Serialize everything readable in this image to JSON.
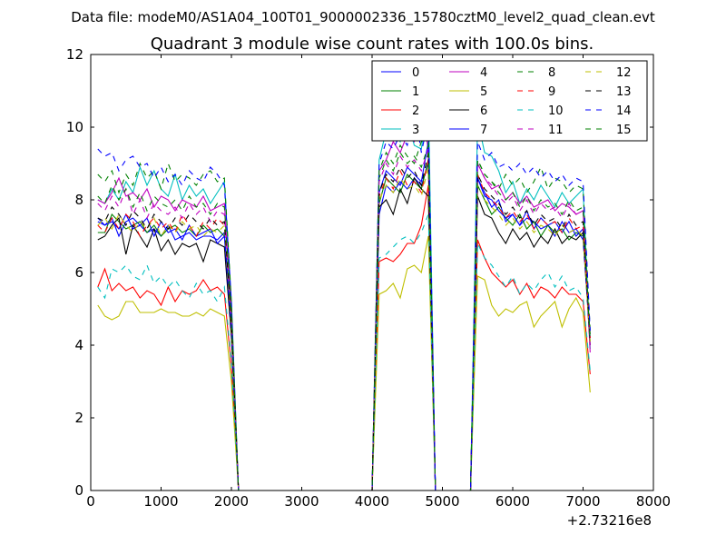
{
  "chart_data": {
    "type": "line",
    "suptitle": "Data file: modeM0/AS1A04_100T01_9000002336_15780cztM0_level2_quad_clean.evt",
    "title": "Quadrant 3 module wise count rates with 100.0s bins.",
    "xlabel": "",
    "ylabel": "",
    "x_offset_label": "+2.73216e8",
    "xlim": [
      0,
      8000
    ],
    "ylim": [
      0,
      12
    ],
    "xticks": [
      "0",
      "1000",
      "2000",
      "3000",
      "4000",
      "5000",
      "6000",
      "7000",
      "8000"
    ],
    "yticks": [
      "0",
      "2",
      "4",
      "6",
      "8",
      "10",
      "12"
    ],
    "legend_position": "top-right",
    "x": [
      100,
      200,
      300,
      400,
      500,
      600,
      700,
      800,
      900,
      1000,
      1100,
      1200,
      1300,
      1400,
      1500,
      1600,
      1700,
      1800,
      1900,
      2000,
      2100,
      2200,
      2300,
      2400,
      2500,
      2600,
      2700,
      2800,
      2900,
      3000,
      3100,
      3200,
      3300,
      3400,
      3500,
      3600,
      3700,
      3800,
      3900,
      4000,
      4100,
      4200,
      4300,
      4400,
      4500,
      4600,
      4700,
      4800,
      4900,
      5000,
      5100,
      5200,
      5300,
      5400,
      5500,
      5600,
      5700,
      5800,
      5900,
      6000,
      6100,
      6200,
      6300,
      6400,
      6500,
      6600,
      6700,
      6800,
      6900,
      7000,
      7100
    ],
    "series": [
      {
        "name": "0",
        "color": "#0000ff",
        "dash": "solid",
        "values": [
          7.4,
          7.3,
          7.5,
          7.0,
          7.4,
          7.5,
          7.3,
          7.1,
          7.2,
          7.0,
          7.3,
          6.9,
          7.0,
          7.1,
          6.9,
          7.0,
          7.0,
          6.9,
          7.1,
          4.5,
          0,
          0,
          0,
          0,
          0,
          0,
          0,
          0,
          0,
          0,
          0,
          0,
          0,
          0,
          0,
          0,
          0,
          0,
          0,
          0,
          7.6,
          8.4,
          8.2,
          8.5,
          8.3,
          8.6,
          8.4,
          9.0,
          0,
          0,
          0,
          0,
          0,
          0,
          8.6,
          8.2,
          7.8,
          8.0,
          7.4,
          7.6,
          7.3,
          7.5,
          7.4,
          7.2,
          7.3,
          7.0,
          7.4,
          7.1,
          7.2,
          6.9,
          4.2
        ]
      },
      {
        "name": "1",
        "color": "#008000",
        "dash": "solid",
        "values": [
          7.1,
          7.1,
          7.6,
          7.4,
          7.2,
          7.3,
          7.4,
          7.1,
          7.3,
          7.0,
          7.2,
          7.3,
          7.1,
          7.2,
          7.0,
          7.3,
          7.1,
          7.2,
          7.0,
          4.6,
          0,
          0,
          0,
          0,
          0,
          0,
          0,
          0,
          0,
          0,
          0,
          0,
          0,
          0,
          0,
          0,
          0,
          0,
          0,
          0,
          7.9,
          8.6,
          8.4,
          8.2,
          8.7,
          8.5,
          8.3,
          9.1,
          0,
          0,
          0,
          0,
          0,
          0,
          8.4,
          8.0,
          7.6,
          7.8,
          7.5,
          7.3,
          7.6,
          7.2,
          7.4,
          7.0,
          7.3,
          7.1,
          7.2,
          6.9,
          7.1,
          7.0,
          4.3
        ]
      },
      {
        "name": "2",
        "color": "#ff0000",
        "dash": "solid",
        "values": [
          5.6,
          6.1,
          5.5,
          5.7,
          5.5,
          5.6,
          5.3,
          5.5,
          5.4,
          5.1,
          5.6,
          5.2,
          5.5,
          5.4,
          5.5,
          5.8,
          5.5,
          5.6,
          5.4,
          3.4,
          0,
          0,
          0,
          0,
          0,
          0,
          0,
          0,
          0,
          0,
          0,
          0,
          0,
          0,
          0,
          0,
          0,
          0,
          0,
          0,
          6.3,
          6.4,
          6.3,
          6.5,
          6.8,
          6.8,
          7.3,
          8.4,
          0,
          0,
          0,
          0,
          0,
          0,
          6.9,
          6.4,
          6.0,
          5.8,
          5.6,
          5.8,
          5.4,
          5.7,
          5.3,
          5.6,
          5.5,
          5.3,
          5.6,
          5.4,
          5.4,
          5.2,
          3.2
        ]
      },
      {
        "name": "3",
        "color": "#00bfbf",
        "dash": "solid",
        "values": [
          8.0,
          7.9,
          8.3,
          8.0,
          8.5,
          8.2,
          8.9,
          8.4,
          8.8,
          8.3,
          8.1,
          8.7,
          8.0,
          8.4,
          8.1,
          8.3,
          7.9,
          8.2,
          8.5,
          5.1,
          0,
          0,
          0,
          0,
          0,
          0,
          0,
          0,
          0,
          0,
          0,
          0,
          0,
          0,
          0,
          0,
          0,
          0,
          0,
          0,
          9.1,
          9.9,
          10.0,
          9.6,
          10.2,
          9.5,
          9.4,
          10.8,
          0,
          0,
          0,
          0,
          0,
          0,
          10.2,
          9.3,
          9.2,
          8.8,
          8.2,
          8.5,
          7.9,
          8.3,
          8.0,
          8.4,
          8.1,
          7.8,
          8.2,
          7.9,
          8.1,
          8.3,
          3.9
        ]
      },
      {
        "name": "4",
        "color": "#bf00bf",
        "dash": "solid",
        "values": [
          8.0,
          7.9,
          8.2,
          8.6,
          8.1,
          8.2,
          8.0,
          8.3,
          7.8,
          8.1,
          8.0,
          7.7,
          8.0,
          7.9,
          7.8,
          8.1,
          7.7,
          7.8,
          7.9,
          4.8,
          0,
          0,
          0,
          0,
          0,
          0,
          0,
          0,
          0,
          0,
          0,
          0,
          0,
          0,
          0,
          0,
          0,
          0,
          0,
          0,
          8.8,
          9.1,
          9.6,
          9.3,
          9.8,
          9.6,
          10.5,
          9.4,
          0,
          0,
          0,
          0,
          0,
          0,
          9.0,
          8.6,
          8.3,
          8.4,
          8.0,
          8.2,
          7.9,
          8.1,
          7.8,
          7.9,
          8.0,
          7.7,
          7.9,
          7.8,
          7.6,
          7.7,
          3.8
        ]
      },
      {
        "name": "5",
        "color": "#bfbf00",
        "dash": "solid",
        "values": [
          5.1,
          4.8,
          4.7,
          4.8,
          5.2,
          5.2,
          4.9,
          4.9,
          4.9,
          5.0,
          4.9,
          4.9,
          4.8,
          4.8,
          4.9,
          4.8,
          5.0,
          4.9,
          4.8,
          3.0,
          0,
          0,
          0,
          0,
          0,
          0,
          0,
          0,
          0,
          0,
          0,
          0,
          0,
          0,
          0,
          0,
          0,
          0,
          0,
          0,
          5.4,
          5.5,
          5.7,
          5.3,
          6.1,
          6.2,
          6.0,
          7.0,
          0,
          0,
          0,
          0,
          0,
          0,
          5.9,
          5.8,
          5.1,
          4.8,
          5.0,
          4.9,
          5.1,
          5.2,
          4.5,
          4.8,
          5.0,
          5.2,
          4.5,
          5.0,
          5.3,
          4.9,
          2.7
        ]
      },
      {
        "name": "6",
        "color": "#000000",
        "dash": "solid",
        "values": [
          6.9,
          7.0,
          7.3,
          7.5,
          6.5,
          7.3,
          7.0,
          6.7,
          7.2,
          6.6,
          6.9,
          6.5,
          6.8,
          6.7,
          6.8,
          6.3,
          6.9,
          6.8,
          6.7,
          4.2,
          0,
          0,
          0,
          0,
          0,
          0,
          0,
          0,
          0,
          0,
          0,
          0,
          0,
          0,
          0,
          0,
          0,
          0,
          0,
          0,
          7.8,
          8.0,
          7.6,
          8.3,
          7.9,
          8.6,
          8.3,
          8.1,
          0,
          0,
          0,
          0,
          0,
          0,
          8.1,
          7.6,
          7.5,
          7.1,
          6.8,
          7.2,
          6.9,
          7.1,
          6.7,
          7.0,
          6.8,
          7.2,
          6.8,
          7.0,
          6.9,
          7.1,
          4.0
        ]
      },
      {
        "name": "7",
        "color": "#0000ff",
        "dash": "solid",
        "values": [
          7.5,
          7.3,
          7.4,
          7.2,
          7.6,
          7.2,
          7.3,
          7.5,
          7.0,
          7.4,
          7.1,
          7.2,
          6.9,
          7.3,
          7.0,
          7.1,
          7.2,
          6.8,
          7.0,
          4.4,
          0,
          0,
          0,
          0,
          0,
          0,
          0,
          0,
          0,
          0,
          0,
          0,
          0,
          0,
          0,
          0,
          0,
          0,
          0,
          0,
          8.2,
          8.8,
          8.6,
          8.4,
          8.9,
          8.7,
          8.5,
          9.6,
          0,
          0,
          0,
          0,
          0,
          0,
          8.6,
          8.1,
          8.0,
          7.7,
          7.5,
          7.6,
          7.3,
          7.7,
          7.2,
          7.5,
          7.3,
          7.4,
          7.1,
          7.4,
          7.0,
          7.2,
          4.1
        ]
      },
      {
        "name": "8",
        "color": "#008000",
        "dash": "dashed",
        "values": [
          8.7,
          8.5,
          8.8,
          8.2,
          8.7,
          8.4,
          9.0,
          8.6,
          8.8,
          8.3,
          9.0,
          8.5,
          8.7,
          8.6,
          8.4,
          8.7,
          8.8,
          8.5,
          8.6,
          5.2,
          0,
          0,
          0,
          0,
          0,
          0,
          0,
          0,
          0,
          0,
          0,
          0,
          0,
          0,
          0,
          0,
          0,
          0,
          0,
          0,
          8.8,
          9.3,
          9.0,
          9.5,
          9.2,
          9.0,
          9.6,
          9.8,
          0,
          0,
          0,
          0,
          0,
          0,
          9.1,
          8.7,
          8.5,
          8.3,
          8.7,
          8.4,
          8.6,
          8.2,
          8.5,
          8.9,
          8.3,
          8.6,
          8.5,
          8.2,
          8.4,
          8.3,
          4.4
        ]
      },
      {
        "name": "9",
        "color": "#ff0000",
        "dash": "dashed",
        "values": [
          7.3,
          7.1,
          7.5,
          7.2,
          7.6,
          7.4,
          7.0,
          7.3,
          7.5,
          7.2,
          7.4,
          7.1,
          7.6,
          7.3,
          7.0,
          7.4,
          7.2,
          7.5,
          7.3,
          4.5,
          0,
          0,
          0,
          0,
          0,
          0,
          0,
          0,
          0,
          0,
          0,
          0,
          0,
          0,
          0,
          0,
          0,
          0,
          0,
          0,
          8.1,
          8.6,
          8.3,
          8.8,
          8.4,
          8.5,
          8.2,
          9.1,
          0,
          0,
          0,
          0,
          0,
          0,
          8.7,
          8.2,
          8.0,
          7.8,
          7.5,
          7.7,
          7.4,
          7.6,
          7.2,
          7.5,
          7.3,
          7.4,
          7.1,
          7.5,
          7.2,
          7.3,
          4.2
        ]
      },
      {
        "name": "10",
        "color": "#00bfbf",
        "dash": "dashed",
        "values": [
          5.6,
          5.3,
          6.1,
          6.0,
          6.2,
          5.9,
          5.8,
          6.2,
          5.7,
          5.9,
          5.6,
          5.8,
          5.5,
          5.3,
          5.7,
          5.4,
          5.5,
          5.2,
          5.6,
          3.5,
          0,
          0,
          0,
          0,
          0,
          0,
          0,
          0,
          0,
          0,
          0,
          0,
          0,
          0,
          0,
          0,
          0,
          0,
          0,
          0,
          6.4,
          6.5,
          6.7,
          6.9,
          7.0,
          6.8,
          7.1,
          7.6,
          0,
          0,
          0,
          0,
          0,
          0,
          6.8,
          6.4,
          6.2,
          5.9,
          5.6,
          5.9,
          5.4,
          5.7,
          5.5,
          5.8,
          6.0,
          5.6,
          5.9,
          5.5,
          5.6,
          5.3,
          3.3
        ]
      },
      {
        "name": "11",
        "color": "#bf00bf",
        "dash": "dashed",
        "values": [
          7.9,
          7.7,
          8.1,
          7.8,
          8.3,
          7.6,
          8.0,
          7.5,
          7.9,
          7.7,
          7.6,
          7.8,
          7.5,
          7.9,
          7.6,
          7.8,
          7.4,
          7.7,
          7.6,
          4.7,
          0,
          0,
          0,
          0,
          0,
          0,
          0,
          0,
          0,
          0,
          0,
          0,
          0,
          0,
          0,
          0,
          0,
          0,
          0,
          0,
          8.5,
          9.0,
          8.7,
          9.2,
          8.9,
          9.1,
          8.8,
          9.4,
          0,
          0,
          0,
          0,
          0,
          0,
          9.0,
          8.6,
          8.4,
          8.1,
          7.9,
          8.1,
          7.7,
          8.0,
          7.6,
          7.9,
          7.7,
          7.8,
          7.5,
          7.9,
          7.6,
          7.7,
          4.0
        ]
      },
      {
        "name": "12",
        "color": "#bfbf00",
        "dash": "dashed",
        "values": [
          7.3,
          7.5,
          7.2,
          7.6,
          7.3,
          7.1,
          7.4,
          7.2,
          7.5,
          7.0,
          7.3,
          7.1,
          7.4,
          7.2,
          7.3,
          7.0,
          7.2,
          7.1,
          7.3,
          4.4,
          0,
          0,
          0,
          0,
          0,
          0,
          0,
          0,
          0,
          0,
          0,
          0,
          0,
          0,
          0,
          0,
          0,
          0,
          0,
          0,
          8.0,
          8.4,
          8.2,
          8.6,
          8.3,
          8.4,
          8.1,
          8.9,
          0,
          0,
          0,
          0,
          0,
          0,
          8.4,
          8.0,
          7.8,
          7.6,
          7.3,
          7.5,
          7.2,
          7.4,
          7.1,
          7.3,
          7.2,
          7.0,
          7.3,
          7.1,
          7.2,
          7.0,
          4.1
        ]
      },
      {
        "name": "13",
        "color": "#000000",
        "dash": "dashed",
        "values": [
          7.5,
          7.4,
          7.8,
          7.6,
          7.3,
          7.7,
          7.5,
          7.2,
          7.6,
          7.4,
          7.2,
          7.5,
          7.3,
          7.6,
          7.4,
          7.2,
          7.5,
          7.3,
          7.4,
          4.6,
          0,
          0,
          0,
          0,
          0,
          0,
          0,
          0,
          0,
          0,
          0,
          0,
          0,
          0,
          0,
          0,
          0,
          0,
          0,
          0,
          8.2,
          8.7,
          8.5,
          8.9,
          8.6,
          8.8,
          8.4,
          9.3,
          0,
          0,
          0,
          0,
          0,
          0,
          8.7,
          8.3,
          8.1,
          7.9,
          7.6,
          7.8,
          7.5,
          7.7,
          7.3,
          7.6,
          7.4,
          7.5,
          7.2,
          7.6,
          7.3,
          7.4,
          4.2
        ]
      },
      {
        "name": "14",
        "color": "#0000ff",
        "dash": "dashed",
        "values": [
          9.4,
          9.2,
          9.3,
          8.8,
          9.1,
          9.2,
          8.9,
          9.0,
          8.6,
          8.9,
          8.5,
          8.7,
          8.4,
          8.8,
          8.6,
          8.5,
          8.9,
          8.7,
          8.4,
          5.2,
          0,
          0,
          0,
          0,
          0,
          0,
          0,
          0,
          0,
          0,
          0,
          0,
          0,
          0,
          0,
          0,
          0,
          0,
          0,
          0,
          9.0,
          9.6,
          9.4,
          9.8,
          9.5,
          10.6,
          9.3,
          10.2,
          0,
          0,
          0,
          0,
          0,
          0,
          9.6,
          9.1,
          9.3,
          8.9,
          9.0,
          8.8,
          9.0,
          8.7,
          8.9,
          8.6,
          8.8,
          8.5,
          8.7,
          8.4,
          8.6,
          8.5,
          4.4
        ]
      },
      {
        "name": "15",
        "color": "#008000",
        "dash": "dashed",
        "values": [
          8.1,
          7.9,
          8.4,
          8.0,
          8.3,
          7.8,
          8.2,
          7.7,
          8.1,
          7.9,
          7.8,
          8.0,
          7.7,
          8.1,
          7.8,
          7.9,
          7.6,
          7.9,
          7.8,
          4.8,
          0,
          0,
          0,
          0,
          0,
          0,
          0,
          0,
          0,
          0,
          0,
          0,
          0,
          0,
          0,
          0,
          0,
          0,
          0,
          0,
          8.6,
          9.1,
          8.8,
          9.3,
          9.0,
          9.2,
          8.9,
          9.5,
          0,
          0,
          0,
          0,
          0,
          0,
          9.1,
          8.7,
          8.5,
          8.2,
          8.0,
          8.2,
          7.8,
          8.1,
          7.7,
          8.0,
          7.8,
          7.9,
          7.6,
          8.0,
          7.7,
          7.8,
          4.1
        ]
      }
    ]
  }
}
